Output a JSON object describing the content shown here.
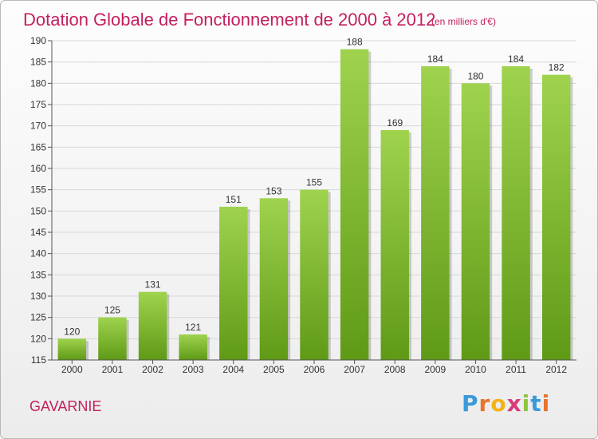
{
  "chart_data": {
    "type": "bar",
    "title": "Dotation Globale de Fonctionnement de 2000 à 2012",
    "unit": "(en milliers d'€)",
    "categories": [
      "2000",
      "2001",
      "2002",
      "2003",
      "2004",
      "2005",
      "2006",
      "2007",
      "2008",
      "2009",
      "2010",
      "2011",
      "2012"
    ],
    "values": [
      120,
      125,
      131,
      121,
      151,
      153,
      155,
      188,
      169,
      184,
      180,
      184,
      182
    ],
    "ylim": [
      115,
      190
    ],
    "yticks": [
      115,
      120,
      125,
      130,
      135,
      140,
      145,
      150,
      155,
      160,
      165,
      170,
      175,
      180,
      185,
      190
    ],
    "grid": true,
    "xlabel": "",
    "ylabel": ""
  },
  "commune": "GAVARNIE",
  "logo": {
    "letters": [
      "P",
      "r",
      "o",
      "x",
      "i",
      "t",
      "i"
    ],
    "colors": [
      "#3a9ad9",
      "#e8732a",
      "#f2b318",
      "#d93a7a",
      "#8cc63f",
      "#3a9ad9",
      "#e8732a"
    ]
  },
  "colors": {
    "bar_top": "#9fd34e",
    "bar_bottom": "#5f9a16",
    "accent": "#c41f5f"
  }
}
